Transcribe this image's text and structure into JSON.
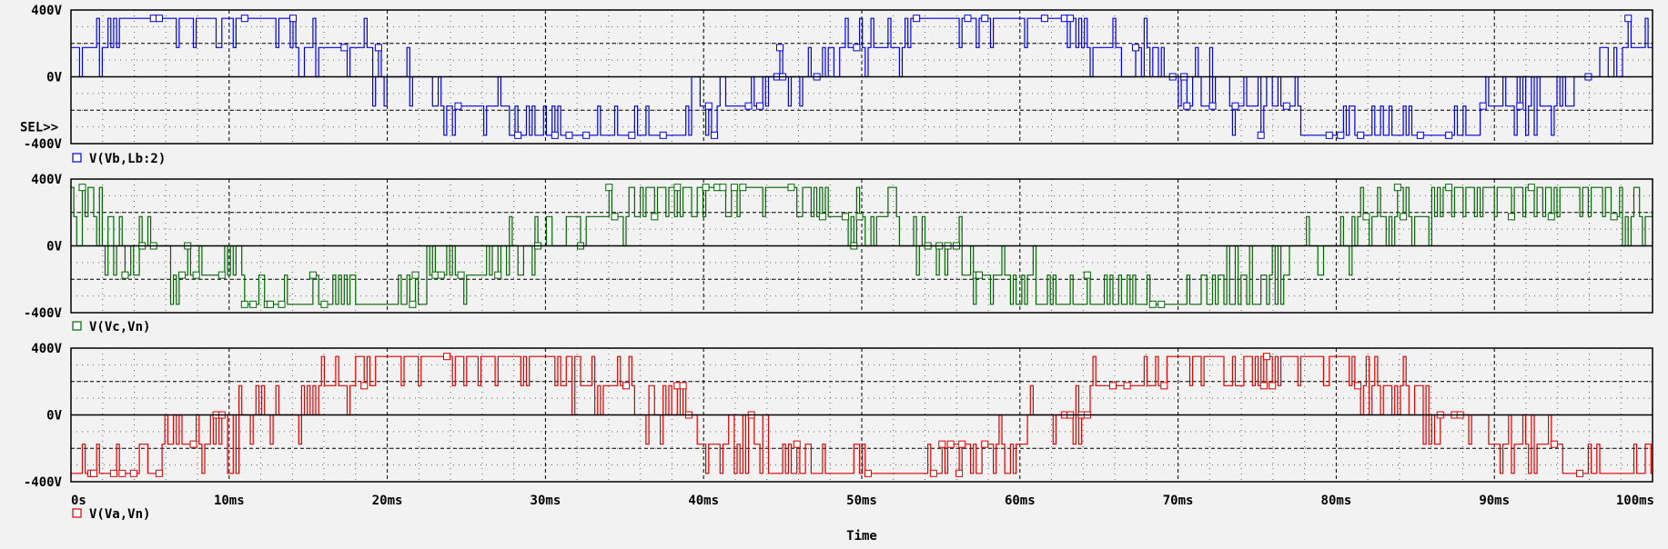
{
  "chart_data": {
    "type": "line",
    "xlabel": "Time",
    "x_ticks": [
      "0s",
      "10ms",
      "20ms",
      "30ms",
      "40ms",
      "50ms",
      "60ms",
      "70ms",
      "80ms",
      "90ms",
      "100ms"
    ],
    "xlim_ms": [
      0,
      100
    ],
    "y_ticks": [
      "400V",
      "0V",
      "-400V"
    ],
    "ylim_V": [
      -400,
      400
    ],
    "grid": true,
    "selected_label": "SEL>>",
    "panels": [
      {
        "name": "V(Vb,Lb:2)",
        "color": "#0000dd",
        "amplitude_V": 350,
        "frequency_Hz": 20,
        "phase_deg": 30,
        "switching": "multilevel PWM",
        "selected": true
      },
      {
        "name": "V(Vc,Vn)",
        "color": "#006600",
        "amplitude_V": 350,
        "frequency_Hz": 20,
        "phase_deg": 150,
        "switching": "multilevel PWM",
        "selected": false
      },
      {
        "name": "V(Va,Vn)",
        "color": "#dd0000",
        "amplitude_V": 350,
        "frequency_Hz": 20,
        "phase_deg": -90,
        "switching": "multilevel PWM",
        "selected": false
      }
    ]
  }
}
